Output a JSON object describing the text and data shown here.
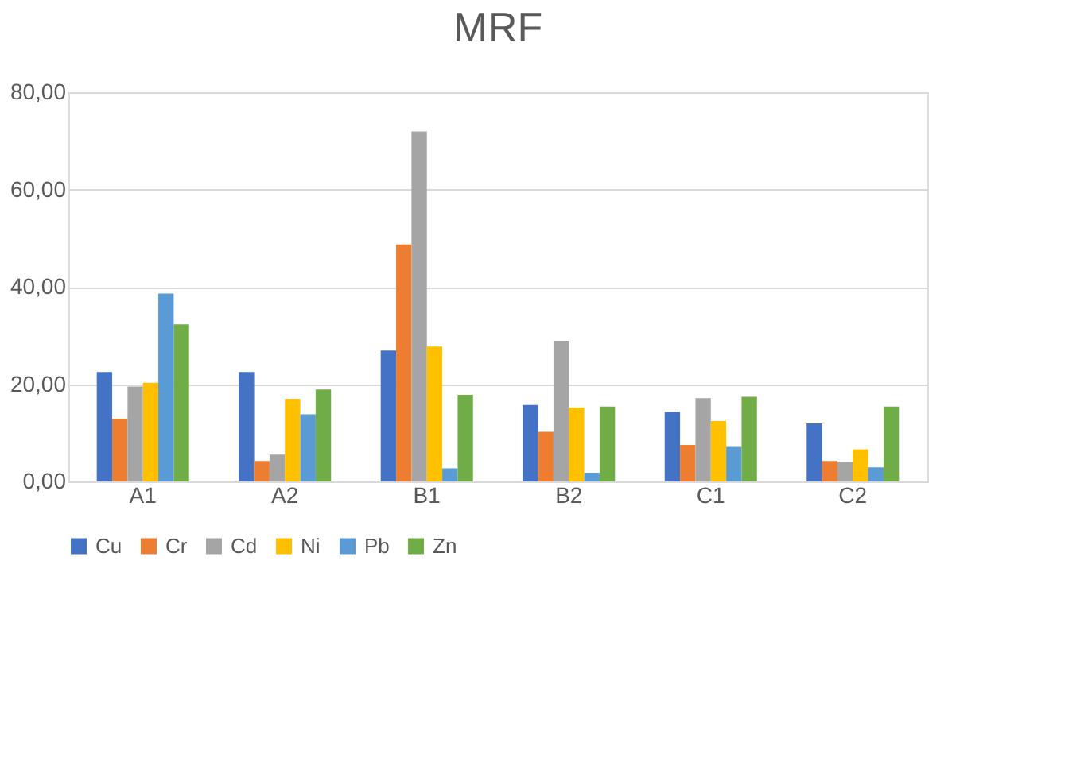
{
  "chart_data": {
    "type": "bar",
    "title": "MRF",
    "categories": [
      "A1",
      "A2",
      "B1",
      "B2",
      "C1",
      "C2"
    ],
    "series": [
      {
        "name": "Cu",
        "color": "#4472c4",
        "values": [
          22.5,
          22.5,
          26.9,
          15.7,
          14.3,
          11.9
        ]
      },
      {
        "name": "Cr",
        "color": "#ed7d31",
        "values": [
          12.9,
          4.2,
          48.7,
          10.2,
          7.5,
          4.2
        ]
      },
      {
        "name": "Cd",
        "color": "#a5a5a5",
        "values": [
          19.5,
          5.5,
          71.9,
          28.9,
          17.1,
          4.0
        ]
      },
      {
        "name": "Ni",
        "color": "#ffc000",
        "values": [
          20.3,
          17.0,
          27.7,
          15.2,
          12.4,
          6.6
        ]
      },
      {
        "name": "Pb",
        "color": "#5b9bd5",
        "values": [
          38.6,
          13.8,
          2.7,
          1.8,
          7.1,
          2.9
        ]
      },
      {
        "name": "Zn",
        "color": "#70ad47",
        "values": [
          32.3,
          18.9,
          17.8,
          15.4,
          17.4,
          15.4
        ]
      }
    ],
    "ylim": [
      0,
      80
    ],
    "yticks": [
      {
        "value": 0,
        "label": "0,00"
      },
      {
        "value": 20,
        "label": "20,00"
      },
      {
        "value": 40,
        "label": "40,00"
      },
      {
        "value": 60,
        "label": "60,00"
      },
      {
        "value": 80,
        "label": "80,00"
      }
    ],
    "grid": "y",
    "legend": "bottom"
  }
}
